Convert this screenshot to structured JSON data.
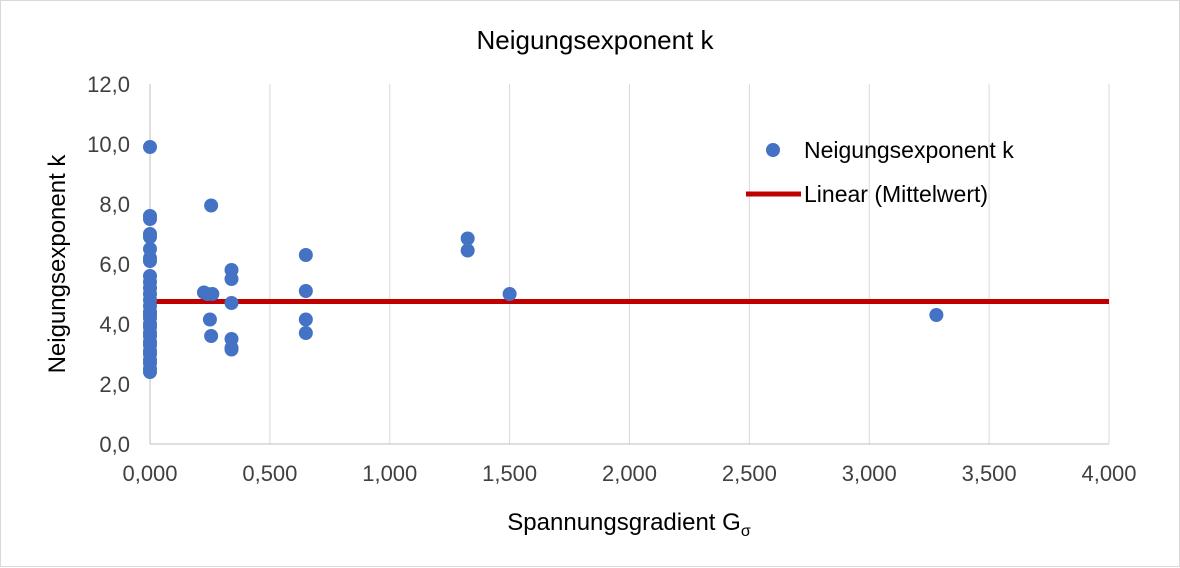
{
  "chart_data": {
    "type": "scatter",
    "title": "Neigungsexponent k",
    "xlabel": "Spannungsgradient G",
    "xlabel_sub": "σ",
    "ylabel": "Neigungsexponent k",
    "xlim": [
      0,
      4
    ],
    "ylim": [
      0,
      12
    ],
    "x_ticks": [
      0,
      0.5,
      1,
      1.5,
      2,
      2.5,
      3,
      3.5,
      4
    ],
    "x_tick_labels": [
      "0,000",
      "0,500",
      "1,000",
      "1,500",
      "2,000",
      "2,500",
      "3,000",
      "3,500",
      "4,000"
    ],
    "y_ticks": [
      0,
      2,
      4,
      6,
      8,
      10,
      12
    ],
    "y_tick_labels": [
      "0,0",
      "2,0",
      "4,0",
      "6,0",
      "8,0",
      "10,0",
      "12,0"
    ],
    "grid": "vertical",
    "legend_position": "top-right",
    "series": [
      {
        "name": "Neigungsexponent k",
        "kind": "scatter",
        "color": "#4472c4",
        "points": [
          [
            0,
            9.9
          ],
          [
            0,
            7.6
          ],
          [
            0,
            7.5
          ],
          [
            0,
            7.0
          ],
          [
            0,
            6.9
          ],
          [
            0,
            6.5
          ],
          [
            0,
            6.2
          ],
          [
            0,
            6.1
          ],
          [
            0,
            5.6
          ],
          [
            0,
            5.4
          ],
          [
            0,
            5.2
          ],
          [
            0,
            5.0
          ],
          [
            0,
            4.8
          ],
          [
            0,
            4.6
          ],
          [
            0,
            4.4
          ],
          [
            0,
            4.3
          ],
          [
            0,
            4.2
          ],
          [
            0,
            4.0
          ],
          [
            0,
            3.9
          ],
          [
            0,
            3.7
          ],
          [
            0,
            3.6
          ],
          [
            0,
            3.4
          ],
          [
            0,
            3.3
          ],
          [
            0,
            3.1
          ],
          [
            0,
            3.0
          ],
          [
            0,
            2.8
          ],
          [
            0,
            2.7
          ],
          [
            0,
            2.5
          ],
          [
            0,
            2.4
          ],
          [
            0.225,
            5.05
          ],
          [
            0.24,
            5.0
          ],
          [
            0.25,
            4.15
          ],
          [
            0.255,
            3.6
          ],
          [
            0.255,
            7.95
          ],
          [
            0.26,
            5.0
          ],
          [
            0.34,
            5.8
          ],
          [
            0.34,
            5.5
          ],
          [
            0.34,
            4.7
          ],
          [
            0.34,
            3.5
          ],
          [
            0.34,
            3.2
          ],
          [
            0.34,
            3.15
          ],
          [
            0.65,
            6.3
          ],
          [
            0.65,
            5.1
          ],
          [
            0.65,
            4.15
          ],
          [
            0.65,
            3.7
          ],
          [
            1.325,
            6.85
          ],
          [
            1.325,
            6.45
          ],
          [
            1.5,
            5.0
          ],
          [
            3.28,
            4.3
          ]
        ]
      },
      {
        "name": "Linear (Mittelwert)",
        "kind": "line",
        "color": "#c00000",
        "points": [
          [
            0,
            4.75
          ],
          [
            4,
            4.75
          ]
        ]
      }
    ]
  }
}
